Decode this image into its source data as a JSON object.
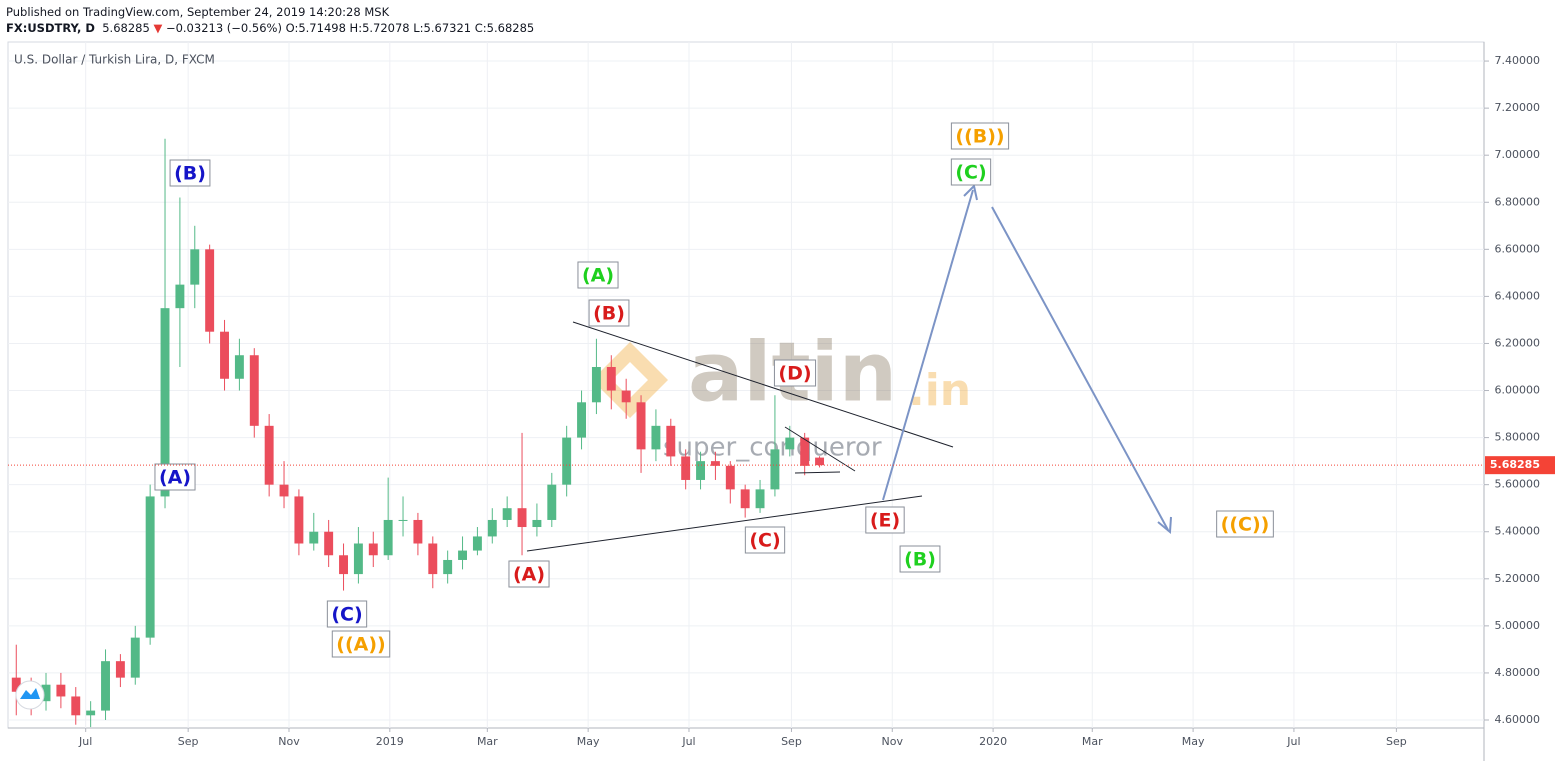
{
  "header": {
    "published": "Published on TradingView.com, September 24, 2019 14:20:28 MSK",
    "symbol": "FX:USDTRY, D",
    "price": "5.68285",
    "arrow": "▼",
    "change": "−0.03213 (−0.56%)",
    "ohlc": "O:5.71498 H:5.72078 L:5.67321 C:5.68285"
  },
  "watermark": {
    "brand": "altin",
    "domain": ".in",
    "author": "super_conqueror"
  },
  "chart_data": {
    "type": "candlestick",
    "title": "U.S. Dollar / Turkish Lira, D, FXCM",
    "up_color": "#53b987",
    "down_color": "#eb4d5c",
    "x": [
      5,
      14,
      23,
      32,
      41,
      50,
      59,
      68,
      77,
      86,
      95,
      104,
      113,
      122,
      131,
      140,
      149,
      158,
      167,
      176,
      185,
      194,
      203,
      212,
      221,
      230,
      239,
      248,
      257,
      266,
      275,
      284,
      293,
      302,
      311,
      320,
      329,
      338,
      347,
      356,
      365,
      374,
      383,
      392,
      401,
      410,
      419,
      428,
      437,
      446,
      455,
      464,
      473,
      482,
      491
    ],
    "open": [
      4.78,
      4.72,
      4.68,
      4.75,
      4.7,
      4.62,
      4.64,
      4.85,
      4.78,
      4.95,
      5.55,
      6.35,
      6.45,
      6.6,
      6.25,
      6.05,
      6.15,
      5.85,
      5.6,
      5.55,
      5.35,
      5.4,
      5.3,
      5.22,
      5.35,
      5.3,
      5.45,
      5.45,
      5.35,
      5.22,
      5.28,
      5.32,
      5.38,
      5.45,
      5.5,
      5.42,
      5.45,
      5.6,
      5.8,
      5.95,
      6.1,
      6.0,
      5.95,
      5.75,
      5.85,
      5.72,
      5.62,
      5.7,
      5.68,
      5.58,
      5.5,
      5.58,
      5.75,
      5.8,
      5.71498
    ],
    "high": [
      4.92,
      4.78,
      4.8,
      4.8,
      4.74,
      4.68,
      4.9,
      4.88,
      5.0,
      5.6,
      7.07,
      6.82,
      6.7,
      6.62,
      6.3,
      6.22,
      6.18,
      5.9,
      5.7,
      5.58,
      5.48,
      5.45,
      5.35,
      5.42,
      5.4,
      5.63,
      5.55,
      5.48,
      5.38,
      5.32,
      5.38,
      5.42,
      5.5,
      5.55,
      5.82,
      5.52,
      5.65,
      5.85,
      6.0,
      6.22,
      6.15,
      6.05,
      5.98,
      5.92,
      5.88,
      5.75,
      5.74,
      5.74,
      5.7,
      5.6,
      5.62,
      5.98,
      5.85,
      5.82,
      5.72078
    ],
    "low": [
      4.62,
      4.62,
      4.64,
      4.65,
      4.58,
      4.57,
      4.6,
      4.74,
      4.75,
      4.92,
      5.5,
      6.1,
      6.35,
      6.2,
      6.0,
      6.0,
      5.8,
      5.55,
      5.5,
      5.3,
      5.32,
      5.25,
      5.15,
      5.18,
      5.25,
      5.28,
      5.38,
      5.3,
      5.16,
      5.18,
      5.24,
      5.3,
      5.35,
      5.42,
      5.3,
      5.38,
      5.42,
      5.55,
      5.75,
      5.9,
      5.92,
      5.88,
      5.65,
      5.7,
      5.68,
      5.58,
      5.58,
      5.62,
      5.52,
      5.46,
      5.48,
      5.55,
      5.72,
      5.64,
      5.67321
    ],
    "close": [
      4.72,
      4.68,
      4.75,
      4.7,
      4.62,
      4.64,
      4.85,
      4.78,
      4.95,
      5.55,
      6.35,
      6.45,
      6.6,
      6.25,
      6.05,
      6.15,
      5.85,
      5.6,
      5.55,
      5.35,
      5.4,
      5.3,
      5.22,
      5.35,
      5.3,
      5.45,
      5.45,
      5.35,
      5.22,
      5.28,
      5.32,
      5.38,
      5.45,
      5.5,
      5.42,
      5.45,
      5.6,
      5.8,
      5.95,
      6.1,
      6.0,
      5.95,
      5.75,
      5.85,
      5.72,
      5.62,
      5.7,
      5.68,
      5.58,
      5.5,
      5.58,
      5.75,
      5.8,
      5.68,
      5.68285
    ],
    "last_price": 5.68285,
    "last_price_color": "#f44336",
    "xlim": [
      0,
      893
    ],
    "xticks": [
      {
        "value": 47,
        "label": "Jul"
      },
      {
        "value": 109,
        "label": "Sep"
      },
      {
        "value": 170,
        "label": "Nov"
      },
      {
        "value": 231,
        "label": "2019"
      },
      {
        "value": 290,
        "label": "Mar"
      },
      {
        "value": 351,
        "label": "May"
      },
      {
        "value": 412,
        "label": "Jul"
      },
      {
        "value": 474,
        "label": "Sep"
      },
      {
        "value": 535,
        "label": "Nov"
      },
      {
        "value": 596,
        "label": "2020"
      },
      {
        "value": 656,
        "label": "Mar"
      },
      {
        "value": 717,
        "label": "May"
      },
      {
        "value": 778,
        "label": "Jul"
      },
      {
        "value": 840,
        "label": "Sep"
      }
    ],
    "ylim": [
      4.566,
      7.481
    ],
    "yticks": [
      {
        "value": 4.6,
        "label": "4.60000"
      },
      {
        "value": 4.8,
        "label": "4.80000"
      },
      {
        "value": 5.0,
        "label": "5.00000"
      },
      {
        "value": 5.2,
        "label": "5.20000"
      },
      {
        "value": 5.4,
        "label": "5.40000"
      },
      {
        "value": 5.6,
        "label": "5.60000"
      },
      {
        "value": 5.8,
        "label": "5.80000"
      },
      {
        "value": 6.0,
        "label": "6.00000"
      },
      {
        "value": 6.2,
        "label": "6.20000"
      },
      {
        "value": 6.4,
        "label": "6.40000"
      },
      {
        "value": 6.6,
        "label": "6.60000"
      },
      {
        "value": 6.8,
        "label": "6.80000"
      },
      {
        "value": 7.0,
        "label": "7.00000"
      },
      {
        "value": 7.2,
        "label": "7.20000"
      },
      {
        "value": 7.4,
        "label": "7.40000"
      }
    ],
    "grid": true,
    "annotations": [
      {
        "text": "(B)",
        "color": "#1515c8"
      },
      {
        "text": "(A)",
        "color": "#1515c8"
      },
      {
        "text": "(C)",
        "color": "#1515c8"
      },
      {
        "text": "((A))",
        "color": "#f5a000"
      },
      {
        "text": "(A)",
        "color": "#1fd01f"
      },
      {
        "text": "(B)",
        "color": "#d81b1b"
      },
      {
        "text": "(A)",
        "color": "#d81b1b"
      },
      {
        "text": "(C)",
        "color": "#d81b1b"
      },
      {
        "text": "(D)",
        "color": "#d81b1b"
      },
      {
        "text": "(E)",
        "color": "#d81b1b"
      },
      {
        "text": "(B)",
        "color": "#1fd01f"
      },
      {
        "text": "((B))",
        "color": "#f5a000"
      },
      {
        "text": "(C)",
        "color": "#1fd01f"
      },
      {
        "text": "((C))",
        "color": "#f5a000"
      }
    ]
  }
}
